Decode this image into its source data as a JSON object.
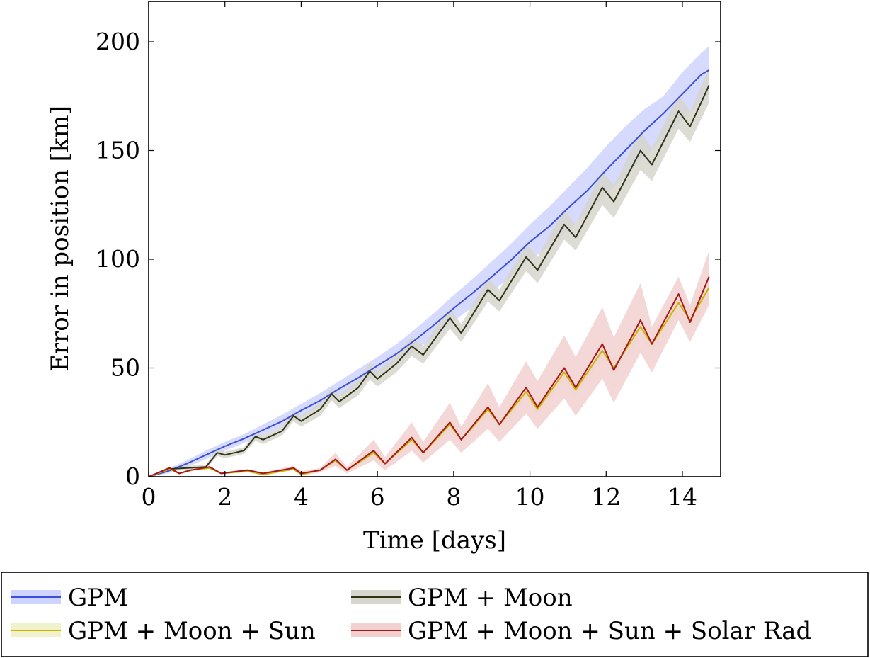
{
  "chart_data": {
    "type": "line",
    "xlabel": "Time [days]",
    "ylabel": "Error in position [km]",
    "xlim": [
      0,
      15
    ],
    "ylim": [
      0,
      220
    ],
    "xticks": [
      0,
      2,
      4,
      6,
      8,
      10,
      12,
      14
    ],
    "yticks": [
      0,
      50,
      100,
      150,
      200
    ],
    "grid": false,
    "legend_position": "below",
    "series": [
      {
        "name": "GPM",
        "line_color": "#3a4fd6",
        "band_color": "#cfd3ff",
        "x": [
          0,
          0.5,
          1,
          1.5,
          2,
          2.5,
          3,
          3.5,
          4,
          4.5,
          5,
          5.5,
          6,
          6.5,
          7,
          7.5,
          8,
          8.5,
          9,
          9.5,
          10,
          10.5,
          11,
          11.5,
          12,
          12.5,
          13,
          13.5,
          14,
          14.5,
          14.7
        ],
        "values": [
          0,
          2.5,
          6,
          10,
          14,
          17.5,
          21.5,
          25.5,
          30.5,
          35,
          40.5,
          45.5,
          51,
          56.5,
          63,
          70,
          77.5,
          84.5,
          92,
          99.5,
          108,
          115,
          123.5,
          131.5,
          141,
          150,
          159,
          167,
          176,
          185,
          187
        ],
        "band_lower": [
          0,
          1.5,
          4.5,
          8,
          12,
          15.5,
          19,
          23,
          27.5,
          32,
          37,
          42,
          47,
          52,
          58,
          64.5,
          71.5,
          78,
          85,
          92,
          99.5,
          106,
          113.5,
          121,
          129.5,
          138,
          147,
          155.5,
          164,
          173,
          176
        ],
        "band_upper": [
          0,
          3.5,
          7.5,
          12,
          16,
          19.5,
          24,
          28.5,
          33.5,
          38.5,
          44,
          49.5,
          55,
          61,
          68,
          75.5,
          83.5,
          91,
          99,
          107,
          116,
          124,
          133,
          142,
          152,
          161,
          169,
          175,
          186,
          195,
          198
        ]
      },
      {
        "name": "GPM + Moon",
        "line_color": "#2e3316",
        "band_color": "#d6d6cc",
        "x": [
          0,
          0.5,
          1,
          1.5,
          1.8,
          2,
          2.5,
          2.8,
          3,
          3.5,
          3.8,
          4,
          4.5,
          4.8,
          5,
          5.5,
          5.8,
          6,
          6.5,
          6.9,
          7.2,
          7.9,
          8.2,
          8.9,
          9.2,
          9.9,
          10.2,
          10.9,
          11.2,
          11.9,
          12.2,
          12.9,
          13.2,
          13.9,
          14.2,
          14.7
        ],
        "values": [
          0,
          3.5,
          4,
          4.5,
          11,
          10,
          12,
          18.5,
          17,
          21,
          28,
          25.5,
          31,
          38,
          34.5,
          41,
          48.5,
          45,
          52,
          60,
          56,
          73,
          66,
          86,
          81,
          101,
          95,
          116,
          110,
          133,
          126.5,
          150,
          143.5,
          168,
          161,
          180
        ],
        "band_lower": [
          0,
          2.5,
          3,
          3.5,
          9.5,
          8.5,
          10.5,
          16.5,
          15,
          19,
          25.5,
          23,
          28,
          35,
          31.5,
          37.5,
          44.5,
          41.5,
          48,
          55.5,
          52,
          68,
          62,
          80.5,
          76,
          94.5,
          89,
          109,
          104,
          125,
          119,
          141,
          136,
          160,
          154,
          172
        ],
        "band_upper": [
          0,
          4.5,
          5,
          5.5,
          12.5,
          11.5,
          13.5,
          20.5,
          19,
          23,
          30.5,
          28,
          34,
          41,
          37.5,
          44.5,
          52.5,
          48.5,
          56,
          64.5,
          60,
          78,
          70,
          91.5,
          86,
          107.5,
          101,
          123,
          116,
          141,
          134,
          159,
          151,
          176,
          168,
          188
        ]
      },
      {
        "name": "GPM + Moon + Sun",
        "line_color": "#c8b400",
        "band_color": "#f0f2cc",
        "x": [
          0,
          0.55,
          0.8,
          1.1,
          1.6,
          1.9,
          2.6,
          3,
          3.8,
          4,
          4.5,
          4.9,
          5.2,
          5.9,
          6.2,
          6.9,
          7.2,
          7.9,
          8.2,
          8.9,
          9.2,
          9.9,
          10.2,
          10.9,
          11.2,
          11.9,
          12.2,
          12.9,
          13.2,
          13.9,
          14.2,
          14.7
        ],
        "values": [
          0,
          3.5,
          1.5,
          3,
          4,
          1.5,
          2.5,
          1,
          3.5,
          1,
          3,
          7.5,
          3,
          11,
          6,
          17,
          11,
          24,
          17,
          31,
          24,
          39,
          31,
          48,
          40,
          58,
          50,
          69,
          61,
          80,
          72,
          87
        ],
        "band_lower": [
          0,
          3,
          1,
          2.5,
          3.5,
          1,
          2,
          0.5,
          3,
          0.5,
          2.5,
          6.5,
          2.5,
          9.5,
          5,
          15,
          9.5,
          21.5,
          15,
          28,
          21.5,
          35.5,
          28.5,
          44,
          37,
          53.5,
          46,
          64,
          57,
          75,
          67.5,
          81
        ],
        "band_upper": [
          0,
          4,
          2,
          3.5,
          4.5,
          2,
          3,
          1.5,
          4,
          1.5,
          3.5,
          8.5,
          3.5,
          12.5,
          7,
          19,
          12.5,
          26.5,
          19,
          34,
          26.5,
          42.5,
          33.5,
          52,
          43,
          62.5,
          54,
          74,
          65,
          85,
          76.5,
          93
        ]
      },
      {
        "name": "GPM + Moon + Sun + Solar Rad",
        "line_color": "#a3161c",
        "band_color": "#f2d0d0",
        "x": [
          0,
          0.55,
          0.8,
          1.1,
          1.6,
          1.9,
          2.6,
          3,
          3.8,
          4,
          4.5,
          4.9,
          5.2,
          5.9,
          6.2,
          6.9,
          7.2,
          7.9,
          8.2,
          8.9,
          9.2,
          9.9,
          10.2,
          10.9,
          11.2,
          11.9,
          12.2,
          12.9,
          13.2,
          13.9,
          14.2,
          14.7
        ],
        "values": [
          0,
          4,
          1.5,
          3,
          4.5,
          1.5,
          3,
          1.5,
          4,
          1.5,
          3,
          8,
          3,
          12,
          6,
          18,
          11,
          25,
          17,
          32,
          24,
          41,
          32,
          50,
          41,
          61,
          49,
          72,
          61,
          84,
          71,
          92
        ],
        "band_lower": [
          0,
          3.5,
          1,
          2.5,
          4,
          1,
          2.5,
          1,
          3,
          0.5,
          2,
          5,
          1.5,
          7.5,
          3,
          12,
          6.5,
          17,
          11,
          22,
          16,
          29,
          22,
          36,
          28,
          45,
          34,
          57,
          48,
          72,
          62,
          79
        ],
        "band_upper": [
          0,
          4.5,
          2,
          3.5,
          5,
          2,
          3.5,
          2,
          5,
          2.5,
          4,
          11,
          4.5,
          17,
          9,
          25,
          16,
          34,
          23,
          43,
          32,
          53,
          44,
          65,
          55,
          78,
          64,
          89,
          69,
          92,
          79,
          104
        ]
      }
    ]
  }
}
